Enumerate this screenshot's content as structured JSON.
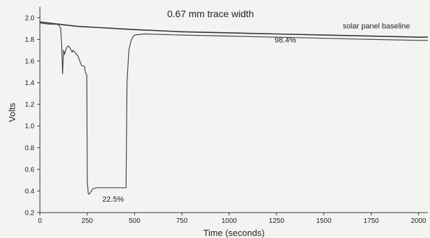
{
  "chart_data": {
    "type": "line",
    "title": "0.67 mm trace width",
    "xlabel": "Time (seconds)",
    "ylabel": "Volts",
    "xlim": [
      0,
      2050
    ],
    "ylim": [
      0.2,
      2.1
    ],
    "xticks": [
      0,
      250,
      500,
      750,
      1000,
      1250,
      1500,
      1750,
      2000
    ],
    "yticks": [
      0.2,
      0.4,
      0.6,
      0.8,
      1.0,
      1.2,
      1.4,
      1.6,
      1.8,
      2.0
    ],
    "xtick_labels": [
      "0",
      "250",
      "500",
      "750",
      "1000",
      "1250",
      "1500",
      "1750",
      "2000"
    ],
    "ytick_labels": [
      "0.2",
      "0.4",
      "0.6",
      "0.8",
      "1.0",
      "1.2",
      "1.4",
      "1.6",
      "1.8",
      "2.0"
    ],
    "grid": false,
    "series": [
      {
        "name": "solar panel baseline",
        "color": "#333333",
        "x": [
          0,
          50,
          100,
          200,
          300,
          400,
          500,
          750,
          1000,
          1250,
          1500,
          1750,
          2000,
          2050
        ],
        "y": [
          1.96,
          1.95,
          1.94,
          1.92,
          1.91,
          1.9,
          1.89,
          1.87,
          1.86,
          1.85,
          1.84,
          1.83,
          1.82,
          1.82
        ]
      },
      {
        "name": "",
        "color": "#444444",
        "x": [
          0,
          50,
          90,
          100,
          110,
          115,
          120,
          125,
          130,
          140,
          150,
          160,
          170,
          175,
          185,
          200,
          220,
          235,
          240,
          248,
          250,
          255,
          260,
          280,
          300,
          350,
          400,
          440,
          455,
          460,
          470,
          480,
          490,
          500,
          550,
          750,
          1000,
          1250,
          1500,
          1750,
          2000,
          2050
        ],
        "y": [
          1.95,
          1.94,
          1.94,
          1.93,
          1.9,
          1.75,
          1.48,
          1.7,
          1.66,
          1.72,
          1.74,
          1.72,
          1.68,
          1.7,
          1.68,
          1.65,
          1.56,
          1.55,
          1.5,
          1.47,
          0.5,
          0.38,
          0.37,
          0.42,
          0.43,
          0.43,
          0.43,
          0.43,
          0.43,
          1.4,
          1.7,
          1.78,
          1.82,
          1.84,
          1.85,
          1.84,
          1.83,
          1.82,
          1.81,
          1.8,
          1.79,
          1.79
        ]
      }
    ],
    "annotations": [
      {
        "text": "solar panel baseline",
        "x": 1600,
        "y": 1.9
      },
      {
        "text": "98.4%",
        "x": 1240,
        "y": 1.77
      },
      {
        "text": "22.5%",
        "x": 330,
        "y": 0.3
      }
    ]
  }
}
